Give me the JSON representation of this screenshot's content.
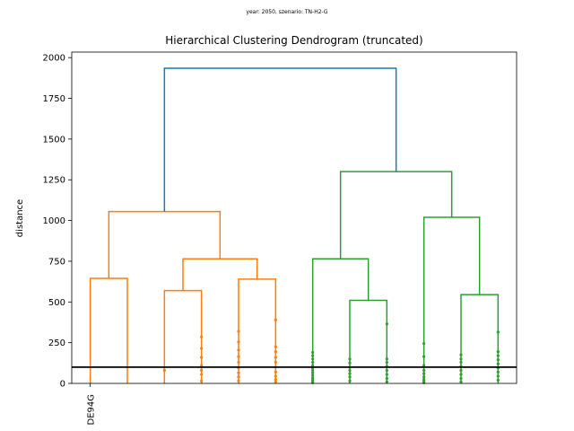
{
  "suptitle": "year: 2050, szenario: TN-H2-G",
  "chart_data": {
    "type": "dendrogram",
    "title": "Hierarchical Clustering Dendrogram (truncated)",
    "xlabel": "",
    "ylabel": "distance",
    "ylim": [
      0,
      2000
    ],
    "yticks": [
      0,
      250,
      500,
      750,
      1000,
      1250,
      1500,
      1750,
      2000
    ],
    "grid": false,
    "leaf_labels": [
      "DE94G"
    ],
    "threshold_line": 100,
    "colors": {
      "root": "#1f77b4",
      "cluster1": "#ff7f0e",
      "cluster2": "#2ca02c",
      "threshold": "#000000"
    },
    "merges": [
      {
        "color": "#ff7f0e",
        "left_x": 5,
        "right_x": 15,
        "left_y": 0,
        "right_y": 0,
        "height": 645
      },
      {
        "color": "#ff7f0e",
        "left_x": 25,
        "right_x": 35,
        "left_y": 0,
        "right_y": 0,
        "height": 570
      },
      {
        "color": "#ff7f0e",
        "left_x": 45,
        "right_x": 55,
        "left_y": 0,
        "right_y": 0,
        "height": 640
      },
      {
        "color": "#ff7f0e",
        "left_x": 30,
        "right_x": 50,
        "left_y": 570,
        "right_y": 640,
        "height": 765
      },
      {
        "color": "#ff7f0e",
        "left_x": 10,
        "right_x": 40,
        "left_y": 645,
        "right_y": 765,
        "height": 1055
      },
      {
        "color": "#2ca02c",
        "left_x": 75,
        "right_x": 85,
        "left_y": 0,
        "right_y": 0,
        "height": 510
      },
      {
        "color": "#2ca02c",
        "left_x": 65,
        "right_x": 80,
        "left_y": 0,
        "right_y": 510,
        "height": 765
      },
      {
        "color": "#2ca02c",
        "left_x": 105,
        "right_x": 115,
        "left_y": 0,
        "right_y": 0,
        "height": 545
      },
      {
        "color": "#2ca02c",
        "left_x": 95,
        "right_x": 110,
        "left_y": 0,
        "right_y": 545,
        "height": 1020
      },
      {
        "color": "#2ca02c",
        "left_x": 72.5,
        "right_x": 102.5,
        "left_y": 765,
        "right_y": 1020,
        "height": 1300
      },
      {
        "color": "#1f77b4",
        "left_x": 25,
        "right_x": 87.5,
        "left_y": 1055,
        "right_y": 1300,
        "height": 1935
      }
    ],
    "leaf_dots": [
      {
        "x": 25,
        "color": "#ff7f0e",
        "y": [
          80
        ]
      },
      {
        "x": 35,
        "color": "#ff7f0e",
        "y": [
          15,
          55,
          80,
          110,
          160,
          215,
          285
        ]
      },
      {
        "x": 45,
        "color": "#ff7f0e",
        "y": [
          15,
          40,
          65,
          95,
          130,
          165,
          205,
          255,
          320
        ]
      },
      {
        "x": 55,
        "color": "#ff7f0e",
        "y": [
          10,
          25,
          45,
          70,
          100,
          130,
          160,
          195,
          225,
          390
        ]
      },
      {
        "x": 65,
        "color": "#2ca02c",
        "y": [
          5,
          15,
          25,
          35,
          50,
          65,
          80,
          95,
          110,
          130,
          150,
          170,
          190
        ]
      },
      {
        "x": 75,
        "color": "#2ca02c",
        "y": [
          15,
          40,
          60,
          80,
          100,
          125,
          150
        ]
      },
      {
        "x": 85,
        "color": "#2ca02c",
        "y": [
          10,
          30,
          55,
          80,
          105,
          130,
          150,
          365
        ]
      },
      {
        "x": 95,
        "color": "#2ca02c",
        "y": [
          5,
          15,
          25,
          40,
          60,
          80,
          110,
          165,
          245
        ]
      },
      {
        "x": 105,
        "color": "#2ca02c",
        "y": [
          10,
          30,
          55,
          80,
          105,
          130,
          150,
          175
        ]
      },
      {
        "x": 115,
        "color": "#2ca02c",
        "y": [
          20,
          45,
          70,
          95,
          120,
          145,
          170,
          195,
          315
        ]
      }
    ]
  }
}
